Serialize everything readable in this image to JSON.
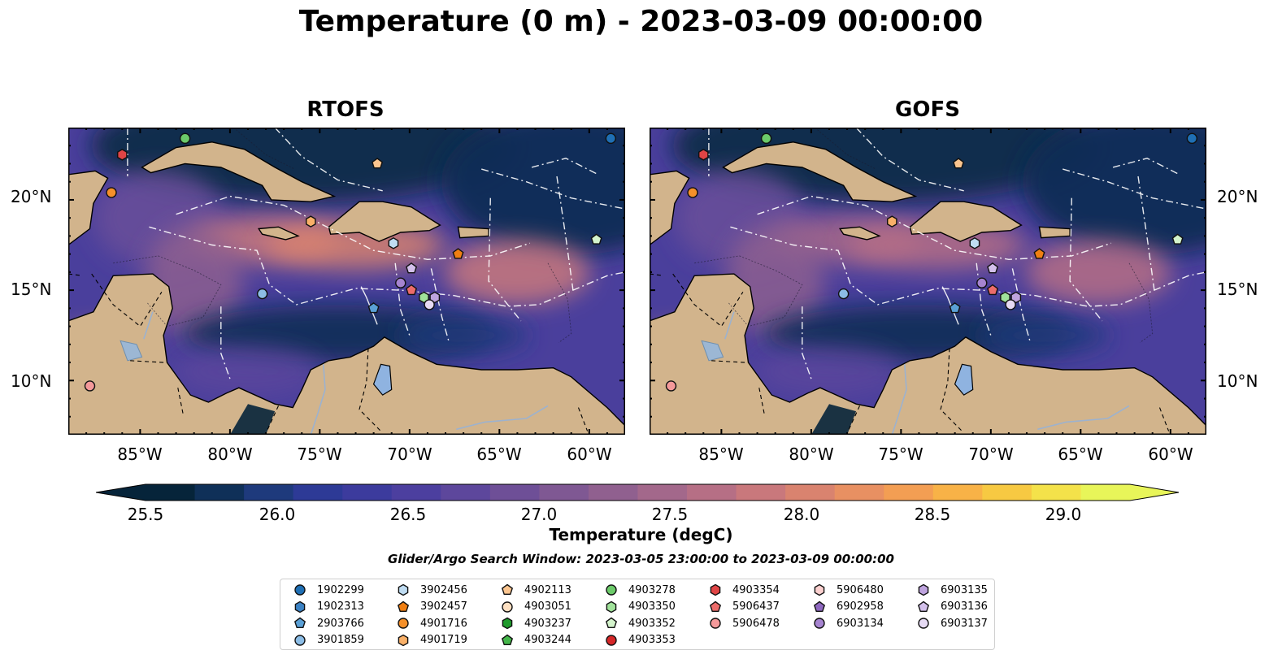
{
  "title": "Temperature (0 m) - 2023-03-09 00:00:00",
  "panels": [
    {
      "title": "RTOFS"
    },
    {
      "title": "GOFS"
    }
  ],
  "axes": {
    "lat_ticks": [
      "20°N",
      "15°N",
      "10°N"
    ],
    "lon_ticks": [
      "85°W",
      "80°W",
      "75°W",
      "70°W",
      "65°W",
      "60°W"
    ]
  },
  "colorbar": {
    "label": "Temperature (degC)",
    "ticks": [
      "25.5",
      "26.0",
      "26.5",
      "27.0",
      "27.5",
      "28.0",
      "28.5",
      "29.0"
    ],
    "colors": [
      "#06243a",
      "#0f3058",
      "#1e3a7c",
      "#2d3a96",
      "#3c3b9d",
      "#4c3f9f",
      "#5d479c",
      "#6e4f97",
      "#7f5893",
      "#90608f",
      "#a3688b",
      "#b66f85",
      "#c9787c",
      "#d9836f",
      "#e89062",
      "#f39e53",
      "#f8b247",
      "#f7c942",
      "#f4e24a",
      "#e8f559"
    ]
  },
  "search_window": "Glider/Argo Search Window: 2023-03-05 23:00:00 to 2023-03-09 00:00:00",
  "chart_data": [
    {
      "type": "heatmap",
      "title": "RTOFS",
      "variable": "Temperature (0 m)",
      "units": "degC",
      "xlim": [
        -89,
        -58
      ],
      "ylim": [
        7,
        24
      ],
      "color_range": [
        25.5,
        29.0
      ],
      "floats": [
        {
          "id": "1902299",
          "lon": -58.8,
          "lat": 23.4
        },
        {
          "id": "4903278",
          "lon": -82.5,
          "lat": 23.4
        },
        {
          "id": "4903354",
          "lon": -86.0,
          "lat": 22.5
        },
        {
          "id": "4902113",
          "lon": -71.8,
          "lat": 22.0
        },
        {
          "id": "4901716",
          "lon": -86.6,
          "lat": 20.4
        },
        {
          "id": "4901719",
          "lon": -75.5,
          "lat": 18.8
        },
        {
          "id": "3902456",
          "lon": -70.9,
          "lat": 17.6
        },
        {
          "id": "3902457",
          "lon": -67.3,
          "lat": 17.0
        },
        {
          "id": "4903352",
          "lon": -59.6,
          "lat": 17.8
        },
        {
          "id": "6903136",
          "lon": -69.9,
          "lat": 16.2
        },
        {
          "id": "6903134",
          "lon": -70.5,
          "lat": 15.4
        },
        {
          "id": "5906437",
          "lon": -69.9,
          "lat": 15.0
        },
        {
          "id": "4903350",
          "lon": -69.2,
          "lat": 14.6
        },
        {
          "id": "6903135",
          "lon": -68.6,
          "lat": 14.6
        },
        {
          "id": "6903137",
          "lon": -68.9,
          "lat": 14.2
        },
        {
          "id": "3901859",
          "lon": -78.2,
          "lat": 14.8
        },
        {
          "id": "2903766",
          "lon": -72.0,
          "lat": 14.0
        },
        {
          "id": "5906478",
          "lon": -87.8,
          "lat": 9.7
        }
      ]
    },
    {
      "type": "heatmap",
      "title": "GOFS",
      "variable": "Temperature (0 m)",
      "units": "degC",
      "xlim": [
        -89,
        -58
      ],
      "ylim": [
        7,
        24
      ],
      "color_range": [
        25.5,
        29.0
      ],
      "floats": [
        {
          "id": "1902299",
          "lon": -58.8,
          "lat": 23.4
        },
        {
          "id": "4903278",
          "lon": -82.5,
          "lat": 23.4
        },
        {
          "id": "4903354",
          "lon": -86.0,
          "lat": 22.5
        },
        {
          "id": "4902113",
          "lon": -71.8,
          "lat": 22.0
        },
        {
          "id": "4901716",
          "lon": -86.6,
          "lat": 20.4
        },
        {
          "id": "4901719",
          "lon": -75.5,
          "lat": 18.8
        },
        {
          "id": "3902456",
          "lon": -70.9,
          "lat": 17.6
        },
        {
          "id": "3902457",
          "lon": -67.3,
          "lat": 17.0
        },
        {
          "id": "4903352",
          "lon": -59.6,
          "lat": 17.8
        },
        {
          "id": "6903136",
          "lon": -69.9,
          "lat": 16.2
        },
        {
          "id": "6903134",
          "lon": -70.5,
          "lat": 15.4
        },
        {
          "id": "5906437",
          "lon": -69.9,
          "lat": 15.0
        },
        {
          "id": "4903350",
          "lon": -69.2,
          "lat": 14.6
        },
        {
          "id": "6903135",
          "lon": -68.6,
          "lat": 14.6
        },
        {
          "id": "6903137",
          "lon": -68.9,
          "lat": 14.2
        },
        {
          "id": "3901859",
          "lon": -78.2,
          "lat": 14.8
        },
        {
          "id": "2903766",
          "lon": -72.0,
          "lat": 14.0
        },
        {
          "id": "5906478",
          "lon": -87.8,
          "lat": 9.7
        }
      ]
    }
  ],
  "legend": {
    "columns": [
      [
        {
          "id": "1902299",
          "marker": "circle",
          "color": "#1f6fb4"
        },
        {
          "id": "1902313",
          "marker": "hexagon",
          "color": "#3b82c4"
        },
        {
          "id": "2903766",
          "marker": "pentagon",
          "color": "#5aa0d6"
        },
        {
          "id": "3901859",
          "marker": "circle",
          "color": "#8cbde6"
        }
      ],
      [
        {
          "id": "3902456",
          "marker": "hexagon",
          "color": "#bfdcf2"
        },
        {
          "id": "3902457",
          "marker": "pentagon",
          "color": "#f07f12"
        },
        {
          "id": "4901716",
          "marker": "circle",
          "color": "#f5902a"
        },
        {
          "id": "4901719",
          "marker": "hexagon",
          "color": "#f9b068"
        }
      ],
      [
        {
          "id": "4902113",
          "marker": "pentagon",
          "color": "#fbc58f"
        },
        {
          "id": "4903051",
          "marker": "circle",
          "color": "#fde0c2"
        },
        {
          "id": "4903237",
          "marker": "hexagon",
          "color": "#1f9a2c"
        },
        {
          "id": "4903244",
          "marker": "pentagon",
          "color": "#44b64a"
        }
      ],
      [
        {
          "id": "4903278",
          "marker": "circle",
          "color": "#6ccb6a"
        },
        {
          "id": "4903350",
          "marker": "hexagon",
          "color": "#a0e29a"
        },
        {
          "id": "4903352",
          "marker": "pentagon",
          "color": "#d4f4cc"
        },
        {
          "id": "4903353",
          "marker": "circle",
          "color": "#d62728"
        }
      ],
      [
        {
          "id": "4903354",
          "marker": "hexagon",
          "color": "#e04445"
        },
        {
          "id": "5906437",
          "marker": "pentagon",
          "color": "#ec6c6a"
        },
        {
          "id": "5906478",
          "marker": "circle",
          "color": "#f4999a"
        }
      ],
      [
        {
          "id": "5906480",
          "marker": "hexagon",
          "color": "#fbd0cf"
        },
        {
          "id": "6902958",
          "marker": "pentagon",
          "color": "#8f68c0"
        },
        {
          "id": "6903134",
          "marker": "circle",
          "color": "#a684d0"
        }
      ],
      [
        {
          "id": "6903135",
          "marker": "hexagon",
          "color": "#bea3de"
        },
        {
          "id": "6903136",
          "marker": "pentagon",
          "color": "#d3c0eb"
        },
        {
          "id": "6903137",
          "marker": "circle",
          "color": "#e6daf4"
        }
      ]
    ]
  }
}
